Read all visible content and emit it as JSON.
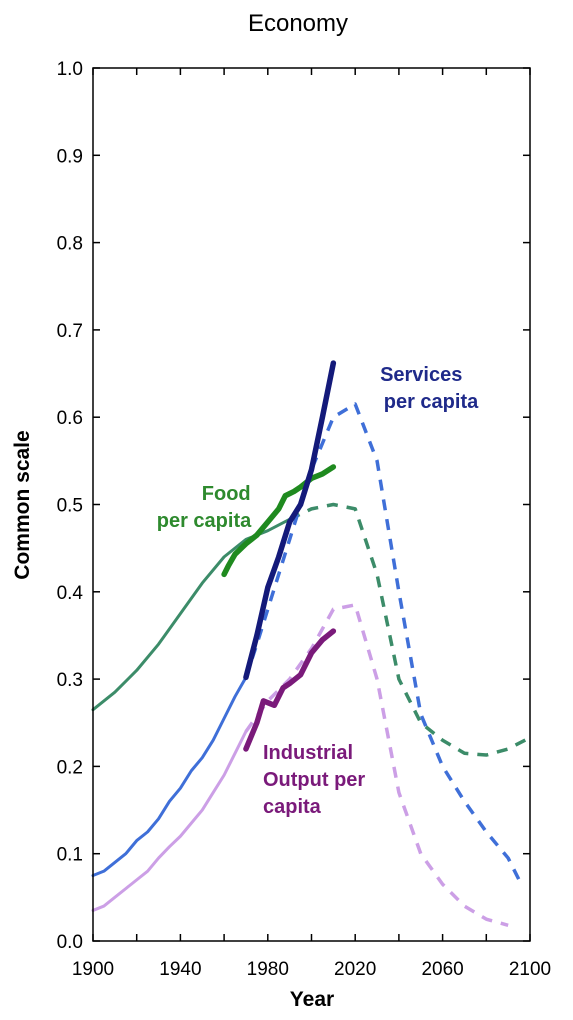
{
  "chart_data": {
    "type": "line",
    "title": "Economy",
    "xlabel": "Year",
    "ylabel": "Common scale",
    "xlim": [
      1900,
      2100
    ],
    "ylim": [
      0,
      1.0
    ],
    "x_ticks": [
      "1900",
      "1940",
      "1980",
      "2020",
      "2060",
      "2100"
    ],
    "y_ticks": [
      "0.0",
      "0.1",
      "0.2",
      "0.3",
      "0.4",
      "0.5",
      "0.6",
      "0.7",
      "0.8",
      "0.9",
      "1.0"
    ],
    "labels": {
      "services": [
        "Services",
        "per capita"
      ],
      "food": [
        "Food",
        "per capita"
      ],
      "industrial": [
        "Industrial",
        "Output per",
        "capita"
      ]
    },
    "series": [
      {
        "key": "food_model",
        "group": "food",
        "kind": "model-historical",
        "color": "#3c8c69",
        "points": [
          [
            1900,
            0.265
          ],
          [
            1910,
            0.285
          ],
          [
            1920,
            0.31
          ],
          [
            1930,
            0.34
          ],
          [
            1940,
            0.375
          ],
          [
            1950,
            0.41
          ],
          [
            1960,
            0.44
          ],
          [
            1970,
            0.46
          ],
          [
            1980,
            0.47
          ],
          [
            1990,
            0.483
          ]
        ]
      },
      {
        "key": "food_projection",
        "group": "food",
        "kind": "projection",
        "color": "#3c8c69",
        "points": [
          [
            1990,
            0.483
          ],
          [
            2000,
            0.495
          ],
          [
            2010,
            0.5
          ],
          [
            2020,
            0.495
          ],
          [
            2030,
            0.42
          ],
          [
            2040,
            0.3
          ],
          [
            2050,
            0.25
          ],
          [
            2060,
            0.23
          ],
          [
            2070,
            0.215
          ],
          [
            2080,
            0.213
          ],
          [
            2090,
            0.22
          ],
          [
            2100,
            0.233
          ]
        ]
      },
      {
        "key": "food_observed",
        "group": "food",
        "kind": "observed",
        "color": "#1f8a1f",
        "points": [
          [
            1960,
            0.42
          ],
          [
            1962,
            0.43
          ],
          [
            1965,
            0.443
          ],
          [
            1970,
            0.455
          ],
          [
            1975,
            0.465
          ],
          [
            1980,
            0.48
          ],
          [
            1985,
            0.495
          ],
          [
            1988,
            0.51
          ],
          [
            1992,
            0.515
          ],
          [
            1995,
            0.52
          ],
          [
            2000,
            0.53
          ],
          [
            2005,
            0.535
          ],
          [
            2010,
            0.543
          ]
        ]
      },
      {
        "key": "services_model",
        "group": "services",
        "kind": "model-historical",
        "color": "#3f6fd8",
        "points": [
          [
            1900,
            0.075
          ],
          [
            1905,
            0.08
          ],
          [
            1910,
            0.09
          ],
          [
            1915,
            0.1
          ],
          [
            1920,
            0.115
          ],
          [
            1925,
            0.125
          ],
          [
            1930,
            0.14
          ],
          [
            1935,
            0.16
          ],
          [
            1940,
            0.175
          ],
          [
            1945,
            0.195
          ],
          [
            1950,
            0.21
          ],
          [
            1955,
            0.23
          ],
          [
            1960,
            0.255
          ],
          [
            1965,
            0.28
          ],
          [
            1970,
            0.302
          ]
        ]
      },
      {
        "key": "services_projection",
        "group": "services",
        "kind": "projection",
        "color": "#3f6fd8",
        "points": [
          [
            1970,
            0.302
          ],
          [
            1975,
            0.34
          ],
          [
            1980,
            0.38
          ],
          [
            1990,
            0.46
          ],
          [
            2000,
            0.54
          ],
          [
            2010,
            0.6
          ],
          [
            2020,
            0.615
          ],
          [
            2030,
            0.55
          ],
          [
            2040,
            0.4
          ],
          [
            2050,
            0.26
          ],
          [
            2060,
            0.2
          ],
          [
            2070,
            0.16
          ],
          [
            2080,
            0.125
          ],
          [
            2090,
            0.095
          ],
          [
            2095,
            0.07
          ]
        ]
      },
      {
        "key": "services_observed",
        "group": "services",
        "kind": "observed",
        "color": "#141a7a",
        "points": [
          [
            1970,
            0.302
          ],
          [
            1975,
            0.35
          ],
          [
            1980,
            0.405
          ],
          [
            1985,
            0.44
          ],
          [
            1990,
            0.48
          ],
          [
            1995,
            0.5
          ],
          [
            2000,
            0.54
          ],
          [
            2005,
            0.6
          ],
          [
            2010,
            0.662
          ]
        ]
      },
      {
        "key": "industrial_model",
        "group": "industrial",
        "kind": "model-historical",
        "color": "#cc9fe6",
        "points": [
          [
            1900,
            0.035
          ],
          [
            1905,
            0.04
          ],
          [
            1910,
            0.05
          ],
          [
            1915,
            0.06
          ],
          [
            1920,
            0.07
          ],
          [
            1925,
            0.08
          ],
          [
            1930,
            0.095
          ],
          [
            1935,
            0.108
          ],
          [
            1940,
            0.12
          ],
          [
            1945,
            0.135
          ],
          [
            1950,
            0.15
          ],
          [
            1955,
            0.17
          ],
          [
            1960,
            0.19
          ],
          [
            1965,
            0.215
          ],
          [
            1970,
            0.24
          ]
        ]
      },
      {
        "key": "industrial_projection",
        "group": "industrial",
        "kind": "projection",
        "color": "#cc9fe6",
        "points": [
          [
            1970,
            0.24
          ],
          [
            1980,
            0.275
          ],
          [
            1990,
            0.3
          ],
          [
            2000,
            0.335
          ],
          [
            2010,
            0.38
          ],
          [
            2020,
            0.385
          ],
          [
            2030,
            0.3
          ],
          [
            2040,
            0.17
          ],
          [
            2050,
            0.1
          ],
          [
            2060,
            0.065
          ],
          [
            2070,
            0.04
          ],
          [
            2080,
            0.025
          ],
          [
            2090,
            0.018
          ]
        ]
      },
      {
        "key": "industrial_observed",
        "group": "industrial",
        "kind": "observed",
        "color": "#7a1a7a",
        "points": [
          [
            1970,
            0.22
          ],
          [
            1975,
            0.25
          ],
          [
            1978,
            0.275
          ],
          [
            1983,
            0.27
          ],
          [
            1987,
            0.29
          ],
          [
            1990,
            0.295
          ],
          [
            1995,
            0.305
          ],
          [
            2000,
            0.33
          ],
          [
            2005,
            0.345
          ],
          [
            2010,
            0.355
          ]
        ]
      }
    ]
  }
}
